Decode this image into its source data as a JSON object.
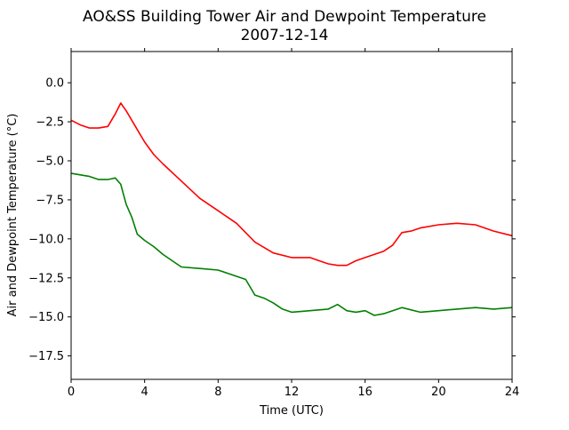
{
  "chart_data": {
    "type": "line",
    "title": "AO&SS Building Tower Air and Dewpoint Temperature",
    "subtitle": "2007-12-14",
    "xlabel": "Time (UTC)",
    "ylabel": "Air and Dewpoint Temperature (°C)",
    "xlim": [
      0,
      24
    ],
    "ylim": [
      -19,
      2
    ],
    "xticks": [
      0,
      4,
      8,
      12,
      16,
      20,
      24
    ],
    "xtick_labels": [
      "0",
      "4",
      "8",
      "12",
      "16",
      "20",
      "24"
    ],
    "yticks": [
      0.0,
      -2.5,
      -5.0,
      -7.5,
      -10.0,
      -12.5,
      -15.0,
      -17.5
    ],
    "ytick_labels": [
      "0.0",
      "−2.5",
      "−5.0",
      "−7.5",
      "−10.0",
      "−12.5",
      "−15.0",
      "−17.5"
    ],
    "grid": false,
    "series": [
      {
        "color": "#ff0000",
        "x": [
          0,
          0.5,
          1,
          1.5,
          2,
          2.4,
          2.7,
          3,
          3.5,
          4,
          4.5,
          5,
          6,
          7,
          8,
          9,
          10,
          11,
          12,
          13,
          13.5,
          14,
          14.5,
          15,
          15.5,
          16,
          16.5,
          17,
          17.5,
          18,
          18.5,
          19,
          20,
          21,
          22,
          23,
          24
        ],
        "y": [
          -2.4,
          -2.7,
          -2.9,
          -2.9,
          -2.8,
          -2.0,
          -1.3,
          -1.8,
          -2.8,
          -3.8,
          -4.6,
          -5.2,
          -6.3,
          -7.4,
          -8.2,
          -9.0,
          -10.2,
          -10.9,
          -11.2,
          -11.2,
          -11.4,
          -11.6,
          -11.7,
          -11.7,
          -11.4,
          -11.2,
          -11.0,
          -10.8,
          -10.4,
          -9.6,
          -9.5,
          -9.3,
          -9.1,
          -9.0,
          -9.1,
          -9.5,
          -9.8
        ]
      },
      {
        "color": "#008000",
        "x": [
          0,
          0.5,
          1,
          1.5,
          2,
          2.4,
          2.7,
          3,
          3.3,
          3.6,
          4,
          4.5,
          5,
          5.5,
          6,
          7,
          8,
          8.5,
          9,
          9.5,
          10,
          10.5,
          11,
          11.5,
          12,
          13,
          14,
          14.5,
          15,
          15.5,
          16,
          16.5,
          17,
          18,
          19,
          20,
          21,
          22,
          23,
          24
        ],
        "y": [
          -5.8,
          -5.9,
          -6.0,
          -6.2,
          -6.2,
          -6.1,
          -6.5,
          -7.8,
          -8.6,
          -9.7,
          -10.1,
          -10.5,
          -11.0,
          -11.4,
          -11.8,
          -11.9,
          -12.0,
          -12.2,
          -12.4,
          -12.6,
          -13.6,
          -13.8,
          -14.1,
          -14.5,
          -14.7,
          -14.6,
          -14.5,
          -14.2,
          -14.6,
          -14.7,
          -14.6,
          -14.9,
          -14.8,
          -14.4,
          -14.7,
          -14.6,
          -14.5,
          -14.4,
          -14.5,
          -14.4
        ]
      }
    ]
  }
}
